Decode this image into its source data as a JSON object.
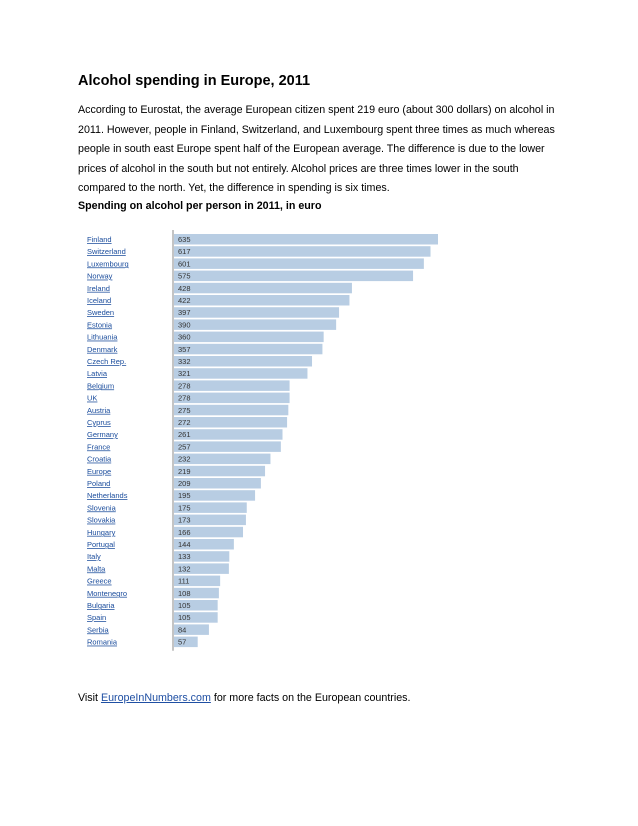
{
  "doc": {
    "title": "Alcohol spending in Europe, 2011",
    "intro": "According to Eurostat, the average European citizen spent 219 euro (about 300 dollars) on alcohol in 2011. However, people in Finland, Switzerland, and Luxembourg spent three times as much whereas people in south east Europe spent half of the European average. The difference is due to the lower prices of alcohol in the south but not entirely. Alcohol prices are three times lower in the south compared to the north. Yet, the difference in spending is six times.",
    "subhead": "Spending on alcohol per person in 2011, in euro",
    "footer": {
      "prefix": "Visit ",
      "link_text": "EuropeInNumbers.com",
      "suffix": " for more facts on the European countries."
    }
  },
  "chart_data": {
    "type": "bar",
    "orientation": "horizontal",
    "categories": [
      "Finland",
      "Switzerland",
      "Luxembourg",
      "Norway",
      "Ireland",
      "Iceland",
      "Sweden",
      "Estonia",
      "Lithuania",
      "Denmark",
      "Czech Rep.",
      "Latvia",
      "Belgium",
      "UK",
      "Austria",
      "Cyprus",
      "Germany",
      "France",
      "Croatia",
      "Europe",
      "Poland",
      "Netherlands",
      "Slovenia",
      "Slovakia",
      "Hungary",
      "Portugal",
      "Italy",
      "Malta",
      "Greece",
      "Montenegro",
      "Bulgaria",
      "Spain",
      "Serbia",
      "Romania"
    ],
    "values": [
      635,
      617,
      601,
      575,
      428,
      422,
      397,
      390,
      360,
      357,
      332,
      321,
      278,
      278,
      275,
      272,
      261,
      257,
      232,
      219,
      209,
      195,
      175,
      173,
      166,
      144,
      133,
      132,
      111,
      108,
      105,
      105,
      84,
      57
    ],
    "xlim": [
      0,
      635
    ],
    "bar_color": "#b8cde3",
    "axis_color": "#8a8a8a",
    "category_label_color": "#1a4c9c"
  }
}
